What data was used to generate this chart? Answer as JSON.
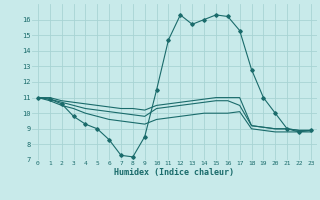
{
  "background_color": "#c8eaea",
  "line_color": "#1a6b6b",
  "grid_color": "#a8d4d4",
  "xlabel": "Humidex (Indice chaleur)",
  "xlim": [
    -0.5,
    23.5
  ],
  "ylim": [
    7,
    17
  ],
  "yticks": [
    7,
    8,
    9,
    10,
    11,
    12,
    13,
    14,
    15,
    16
  ],
  "xticks": [
    0,
    1,
    2,
    3,
    4,
    5,
    6,
    7,
    8,
    9,
    10,
    11,
    12,
    13,
    14,
    15,
    16,
    17,
    18,
    19,
    20,
    21,
    22,
    23
  ],
  "series": [
    {
      "x": [
        0,
        1,
        2,
        3,
        4,
        5,
        6,
        7,
        8,
        9,
        10,
        11,
        12,
        13,
        14,
        15,
        16,
        17,
        18,
        19,
        20,
        21,
        22,
        23
      ],
      "y": [
        11.0,
        10.9,
        10.6,
        9.8,
        9.3,
        9.0,
        8.3,
        7.3,
        7.2,
        8.5,
        11.5,
        14.7,
        16.3,
        15.7,
        16.0,
        16.3,
        16.2,
        15.3,
        12.8,
        11.0,
        10.0,
        9.0,
        8.8,
        8.9
      ],
      "marker": true
    },
    {
      "x": [
        0,
        1,
        2,
        3,
        4,
        5,
        6,
        7,
        8,
        9,
        10,
        11,
        12,
        13,
        14,
        15,
        16,
        17,
        18,
        19,
        20,
        21,
        22,
        23
      ],
      "y": [
        11.0,
        11.0,
        10.8,
        10.7,
        10.6,
        10.5,
        10.4,
        10.3,
        10.3,
        10.2,
        10.5,
        10.6,
        10.7,
        10.8,
        10.9,
        11.0,
        11.0,
        11.0,
        9.2,
        9.1,
        9.0,
        9.0,
        8.9,
        8.9
      ],
      "marker": false
    },
    {
      "x": [
        0,
        1,
        2,
        3,
        4,
        5,
        6,
        7,
        8,
        9,
        10,
        11,
        12,
        13,
        14,
        15,
        16,
        17,
        18,
        19,
        20,
        21,
        22,
        23
      ],
      "y": [
        11.0,
        10.9,
        10.7,
        10.5,
        10.3,
        10.2,
        10.1,
        10.0,
        9.9,
        9.8,
        10.3,
        10.4,
        10.5,
        10.6,
        10.7,
        10.8,
        10.8,
        10.5,
        9.2,
        9.1,
        9.0,
        9.0,
        8.9,
        8.9
      ],
      "marker": false
    },
    {
      "x": [
        0,
        1,
        2,
        3,
        4,
        5,
        6,
        7,
        8,
        9,
        10,
        11,
        12,
        13,
        14,
        15,
        16,
        17,
        18,
        19,
        20,
        21,
        22,
        23
      ],
      "y": [
        11.0,
        10.8,
        10.5,
        10.3,
        10.0,
        9.8,
        9.6,
        9.5,
        9.4,
        9.3,
        9.6,
        9.7,
        9.8,
        9.9,
        10.0,
        10.0,
        10.0,
        10.1,
        9.0,
        8.9,
        8.8,
        8.8,
        8.8,
        8.8
      ],
      "marker": false
    }
  ]
}
